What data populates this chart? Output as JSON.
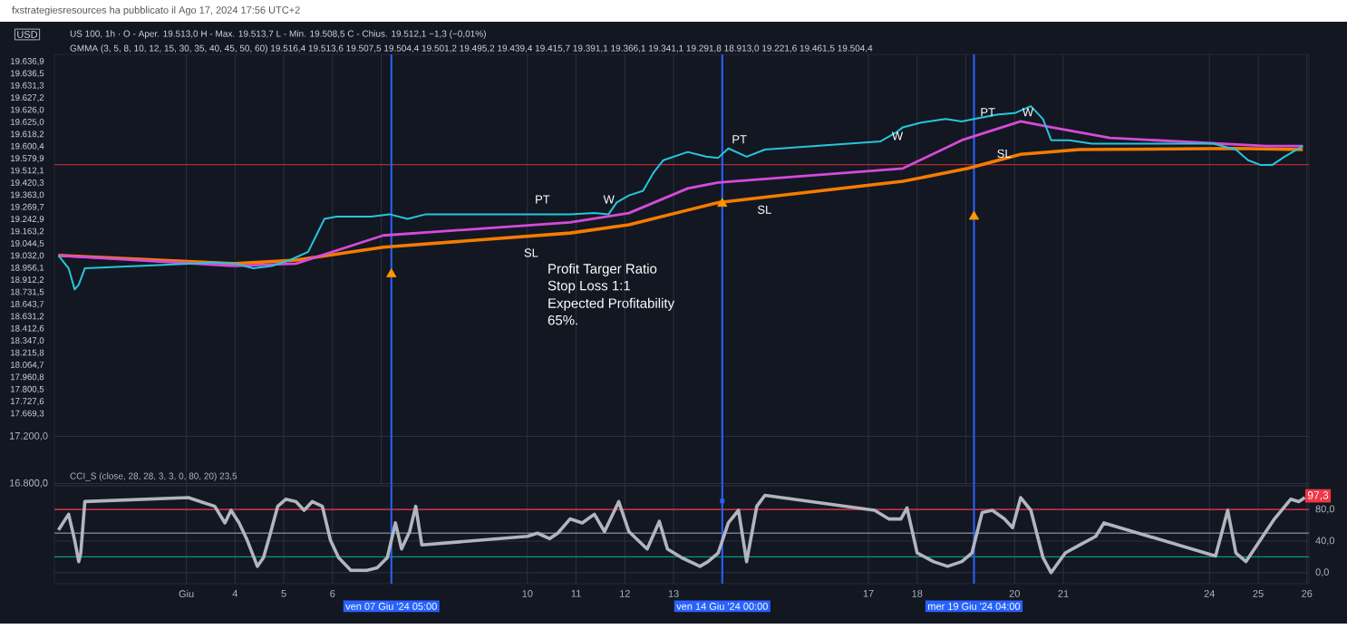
{
  "chart_data": [
    {
      "type": "line",
      "title": "fxstrategiesresources ha pubblicato il Ago 17, 2024 17:56 UTC+2",
      "subtitle": "US 100, 1h · O - Aper. 19.513,0  H - Max. 19.513,7  L - Min. 19.508,5  C - Chius. 19.512,1  −1,3 (−0,01%)",
      "ylabel": "USD",
      "annotations": [
        "GMMA (3, 5, 8, 10, 12, 15, 30, 35, 40, 45, 50, 60)  19.516,4  19.513,6  19.507,5  19.504,4  19.501,2  19.495,2  19.439,4  19.415,7  19.391,1  19.366,1  19.341,1  19.291,8  18.913,0  19.221,6  19.461,5  19.504,4",
        "Profit Targer Ratio",
        "Stop Loss 1:1",
        "Expected Profitability",
        "65%.",
        "19.636,9",
        "19.636,5",
        "19.631,3",
        "19.627,2",
        "19.626,0",
        "19.625,0",
        "19.618,2",
        "19.600,4",
        "19.579,9",
        "19.512,1",
        "19.420,3",
        "19.363,0",
        "19.269,7",
        "19.242,9",
        "19.163,2",
        "19.044,5",
        "19.032,0",
        "18.956,1",
        "18.912,2",
        "18.731,5",
        "18.643,7",
        "18.631,2",
        "18.412,6",
        "18.347,0",
        "18.215,8",
        "18.064,7",
        "17.960,8",
        "17.800,5",
        "17.727,6",
        "17.669,3",
        "PT",
        "W",
        "SL",
        "PT",
        "W",
        "SL",
        "PT",
        "W",
        "SL"
      ],
      "xlim": [
        "2024-05-31T07:00",
        "2024-06-26T01:00"
      ],
      "ylim": [
        16780,
        20450
      ],
      "xticks": [
        {
          "value": "2024-06-03",
          "label": null
        },
        {
          "value": "2024-06-04",
          "label": null
        },
        {
          "value": "2024-06-05",
          "label": null
        },
        {
          "value": "2024-06-06",
          "label": null
        },
        {
          "value": "2024-06-07",
          "label": null
        },
        {
          "value": "2024-06-10",
          "label": null
        },
        {
          "value": "2024-06-11",
          "label": null
        },
        {
          "value": "2024-06-12",
          "label": null
        },
        {
          "value": "2024-06-13",
          "label": null
        },
        {
          "value": "2024-06-14",
          "label": null
        },
        {
          "value": "2024-06-17",
          "label": null
        },
        {
          "value": "2024-06-18",
          "label": null
        },
        {
          "value": "2024-06-19",
          "label": null
        },
        {
          "value": "2024-06-20",
          "label": null
        },
        {
          "value": "2024-06-21",
          "label": null
        },
        {
          "value": "2024-06-24",
          "label": null
        },
        {
          "value": "2024-06-25",
          "label": null
        },
        {
          "value": "2024-06-26",
          "label": null
        }
      ],
      "yticks": [
        {
          "value": 16800,
          "label": "16.800,0"
        },
        {
          "value": 17200,
          "label": "17.200,0"
        }
      ],
      "tick_labels": "y",
      "grid": true,
      "ref_lines": [
        {
          "axis": "y",
          "value": 19512.1,
          "color": "#b22833"
        },
        {
          "axis": "x",
          "value": "2024-06-07T05:00",
          "color": "#2962ff"
        },
        {
          "axis": "x",
          "value": "2024-06-14T00:00",
          "color": "#2962ff"
        },
        {
          "axis": "x",
          "value": "2024-06-19T04:00",
          "color": "#2962ff"
        }
      ],
      "series": [
        {
          "type": "line",
          "color": "#f57c00",
          "x": [
            "2024-05-31T09:00",
            "2024-06-04T00:00",
            "2024-06-05T06:00",
            "2024-06-07T01:00",
            "2024-06-10T21:00",
            "2024-06-12T02:00",
            "2024-06-13T22:00",
            "2024-06-17T17:00",
            "2024-06-19T01:00",
            "2024-06-20T03:00",
            "2024-06-21T08:00",
            "2024-06-24T13:00",
            "2024-06-25T22:00"
          ],
          "values": [
            18740,
            18670,
            18700,
            18810,
            18930,
            19000,
            19190,
            19370,
            19480,
            19600,
            19640,
            19650,
            19640
          ]
        },
        {
          "type": "line",
          "color": "#d54bd8",
          "x": [
            "2024-05-31T09:00",
            "2024-06-04T00:00",
            "2024-06-05T06:00",
            "2024-06-07T01:00",
            "2024-06-10T21:00",
            "2024-06-12T02:00",
            "2024-06-13T07:00",
            "2024-06-13T22:00",
            "2024-06-17T17:00",
            "2024-06-18T22:00",
            "2024-06-20T03:00",
            "2024-06-20T18:00",
            "2024-06-21T23:00",
            "2024-06-25T04:00",
            "2024-06-25T22:00"
          ],
          "values": [
            18740,
            18650,
            18670,
            18910,
            19020,
            19100,
            19310,
            19360,
            19480,
            19720,
            19880,
            19830,
            19740,
            19670,
            19670
          ]
        },
        {
          "type": "line",
          "color": "#26c6da",
          "x": [
            "2024-05-31T09:00",
            "2024-05-31T14:00",
            "2024-05-31T17:00",
            "2024-05-31T19:00",
            "2024-05-31T22:00",
            "2024-06-03T04:00",
            "2024-06-03T13:00",
            "2024-06-04T00:00",
            "2024-06-04T09:00",
            "2024-06-04T18:00",
            "2024-06-05T03:00",
            "2024-06-05T12:00",
            "2024-06-05T16:00",
            "2024-06-05T20:00",
            "2024-06-06T02:00",
            "2024-06-06T11:00",
            "2024-06-06T19:00",
            "2024-06-07T04:00",
            "2024-06-07T13:00",
            "2024-06-07T22:00",
            "2024-06-10T09:00",
            "2024-06-10T21:00",
            "2024-06-11T09:00",
            "2024-06-11T16:00",
            "2024-06-11T20:00",
            "2024-06-12T02:00",
            "2024-06-12T09:00",
            "2024-06-12T14:00",
            "2024-06-12T19:00",
            "2024-06-13T07:00",
            "2024-06-13T16:00",
            "2024-06-13T22:00",
            "2024-06-14T03:00",
            "2024-06-14T12:00",
            "2024-06-14T21:00",
            "2024-06-17T06:00",
            "2024-06-17T14:00",
            "2024-06-17T17:00",
            "2024-06-18T02:00",
            "2024-06-18T14:00",
            "2024-06-18T22:00",
            "2024-06-19T07:00",
            "2024-06-19T16:00",
            "2024-06-20T00:00",
            "2024-06-20T08:00",
            "2024-06-20T14:00",
            "2024-06-20T18:00",
            "2024-06-21T03:00",
            "2024-06-21T14:00",
            "2024-06-24T02:00",
            "2024-06-24T13:00",
            "2024-06-24T19:00",
            "2024-06-25T01:00",
            "2024-06-25T07:00",
            "2024-06-25T13:00",
            "2024-06-25T19:00",
            "2024-06-25T22:00"
          ],
          "values": [
            18740,
            18630,
            18450,
            18490,
            18630,
            18670,
            18680,
            18670,
            18630,
            18650,
            18700,
            18770,
            18910,
            19050,
            19070,
            19070,
            19070,
            19090,
            19050,
            19090,
            19090,
            19090,
            19100,
            19090,
            19190,
            19250,
            19290,
            19440,
            19550,
            19620,
            19580,
            19570,
            19650,
            19580,
            19640,
            19710,
            19790,
            19830,
            19870,
            19900,
            19880,
            19910,
            19940,
            19950,
            20010,
            19900,
            19720,
            19720,
            19690,
            19690,
            19640,
            19550,
            19510,
            19510,
            19580,
            19640,
            19670
          ]
        },
        {
          "type": "scatter",
          "marker": "triangle",
          "color": "#ff9800",
          "x": [
            "2024-06-07T05:00",
            "2024-06-14T00:00",
            "2024-06-19T04:00"
          ],
          "values": [
            18580,
            19180,
            19070
          ]
        }
      ]
    },
    {
      "type": "line",
      "annotations": [
        "CCI_S (close, 28, 28, 3, 3, 0, 80, 20)  23,5",
        {
          "text": "97,3",
          "x": "2024-06-25T23:00",
          "y": 97.3
        }
      ],
      "xlim": [
        "2024-05-31T07:00",
        "2024-06-26T01:00"
      ],
      "ylim": [
        -14,
        110
      ],
      "xticks": [
        {
          "value": "2024-06-03",
          "label": "Giu"
        },
        {
          "value": "2024-06-04",
          "label": "4"
        },
        {
          "value": "2024-06-05",
          "label": "5"
        },
        {
          "value": "2024-06-06",
          "label": "6"
        },
        {
          "value": "2024-06-10",
          "label": "10"
        },
        {
          "value": "2024-06-11",
          "label": "11"
        },
        {
          "value": "2024-06-12",
          "label": "12"
        },
        {
          "value": "2024-06-13",
          "label": "13"
        },
        {
          "value": "2024-06-17",
          "label": "17"
        },
        {
          "value": "2024-06-18",
          "label": "18"
        },
        {
          "value": "2024-06-20",
          "label": "20"
        },
        {
          "value": "2024-06-21",
          "label": "21"
        },
        {
          "value": "2024-06-24",
          "label": "24"
        },
        {
          "value": "2024-06-25",
          "label": "25"
        },
        {
          "value": "2024-06-26",
          "label": "26"
        }
      ],
      "yticks": [
        {
          "value": 0,
          "label": "0,0"
        },
        {
          "value": 40,
          "label": "40,0"
        },
        {
          "value": 80,
          "label": "80,0"
        }
      ],
      "grid": true,
      "ref_lines": [
        {
          "axis": "y",
          "value": 80,
          "color": "#f23645"
        },
        {
          "axis": "y",
          "value": 50,
          "color": "#787b86"
        },
        {
          "axis": "y",
          "value": 20,
          "color": "#089981"
        },
        {
          "axis": "x",
          "value": "2024-06-07T05:00",
          "color": "#2962ff",
          "label": "ven 07 Giu '24   05:00"
        },
        {
          "axis": "x",
          "value": "2024-06-14T00:00",
          "color": "#2962ff",
          "label": "ven 14 Giu '24   00:00"
        },
        {
          "axis": "x",
          "value": "2024-06-19T04:00",
          "color": "#2962ff",
          "label": "mer 19 Giu '24   04:00"
        }
      ],
      "series": [
        {
          "color": "#b2b5be",
          "x": [
            "2024-05-31T09:00",
            "2024-05-31T14:00",
            "2024-05-31T17:00",
            "2024-05-31T19:00",
            "2024-05-31T20:00",
            "2024-05-31T22:00",
            "2024-06-03T01:00",
            "2024-06-03T07:00",
            "2024-06-03T14:00",
            "2024-06-03T19:00",
            "2024-06-03T22:00",
            "2024-06-04T02:00",
            "2024-06-04T06:00",
            "2024-06-04T11:00",
            "2024-06-04T14:00",
            "2024-06-04T17:00",
            "2024-06-04T21:00",
            "2024-06-05T01:00",
            "2024-06-05T06:00",
            "2024-06-05T10:00",
            "2024-06-05T14:00",
            "2024-06-05T19:00",
            "2024-06-05T23:00",
            "2024-06-06T03:00",
            "2024-06-06T09:00",
            "2024-06-06T17:00",
            "2024-06-06T22:00",
            "2024-06-07T03:00",
            "2024-06-07T07:00",
            "2024-06-07T10:00",
            "2024-06-07T14:00",
            "2024-06-07T17:00",
            "2024-06-07T20:00",
            "2024-06-10T00:00",
            "2024-06-10T05:00",
            "2024-06-10T11:00",
            "2024-06-10T15:00",
            "2024-06-10T21:00",
            "2024-06-11T03:00",
            "2024-06-11T09:00",
            "2024-06-11T14:00",
            "2024-06-11T21:00",
            "2024-06-12T02:00",
            "2024-06-12T11:00",
            "2024-06-12T17:00",
            "2024-06-12T21:00",
            "2024-06-13T04:00",
            "2024-06-13T13:00",
            "2024-06-13T17:00",
            "2024-06-13T22:00",
            "2024-06-14T03:00",
            "2024-06-14T08:00",
            "2024-06-14T12:00",
            "2024-06-14T17:00",
            "2024-06-14T21:00",
            "2024-06-17T03:00",
            "2024-06-17T10:00",
            "2024-06-17T16:00",
            "2024-06-17T19:00",
            "2024-06-18T00:00",
            "2024-06-18T08:00",
            "2024-06-18T15:00",
            "2024-06-18T22:00",
            "2024-06-19T03:00",
            "2024-06-19T08:00",
            "2024-06-19T13:00",
            "2024-06-19T19:00",
            "2024-06-19T23:00",
            "2024-06-20T03:00",
            "2024-06-20T08:00",
            "2024-06-20T14:00",
            "2024-06-20T18:00",
            "2024-06-21T01:00",
            "2024-06-21T08:00",
            "2024-06-21T16:00",
            "2024-06-21T20:00",
            "2024-06-24T03:00",
            "2024-06-24T09:00",
            "2024-06-24T13:00",
            "2024-06-24T18:00",
            "2024-06-25T01:00",
            "2024-06-25T08:00",
            "2024-06-25T16:00",
            "2024-06-25T20:00",
            "2024-06-25T23:00"
          ],
          "values": [
            54,
            74,
            41,
            14,
            25,
            90,
            95,
            90,
            84,
            63,
            79,
            63,
            41,
            8,
            19,
            46,
            84,
            93,
            90,
            79,
            90,
            84,
            41,
            19,
            3,
            3,
            6,
            19,
            63,
            30,
            52,
            84,
            35,
            46,
            50,
            43,
            50,
            68,
            63,
            74,
            52,
            90,
            52,
            30,
            65,
            30,
            19,
            8,
            14,
            25,
            63,
            79,
            14,
            84,
            98,
            79,
            68,
            68,
            82,
            25,
            14,
            8,
            14,
            25,
            76,
            79,
            68,
            57,
            95,
            79,
            19,
            0,
            25,
            35,
            46,
            63,
            21,
            79,
            25,
            14,
            41,
            68,
            93,
            90,
            95
          ]
        }
      ]
    }
  ]
}
